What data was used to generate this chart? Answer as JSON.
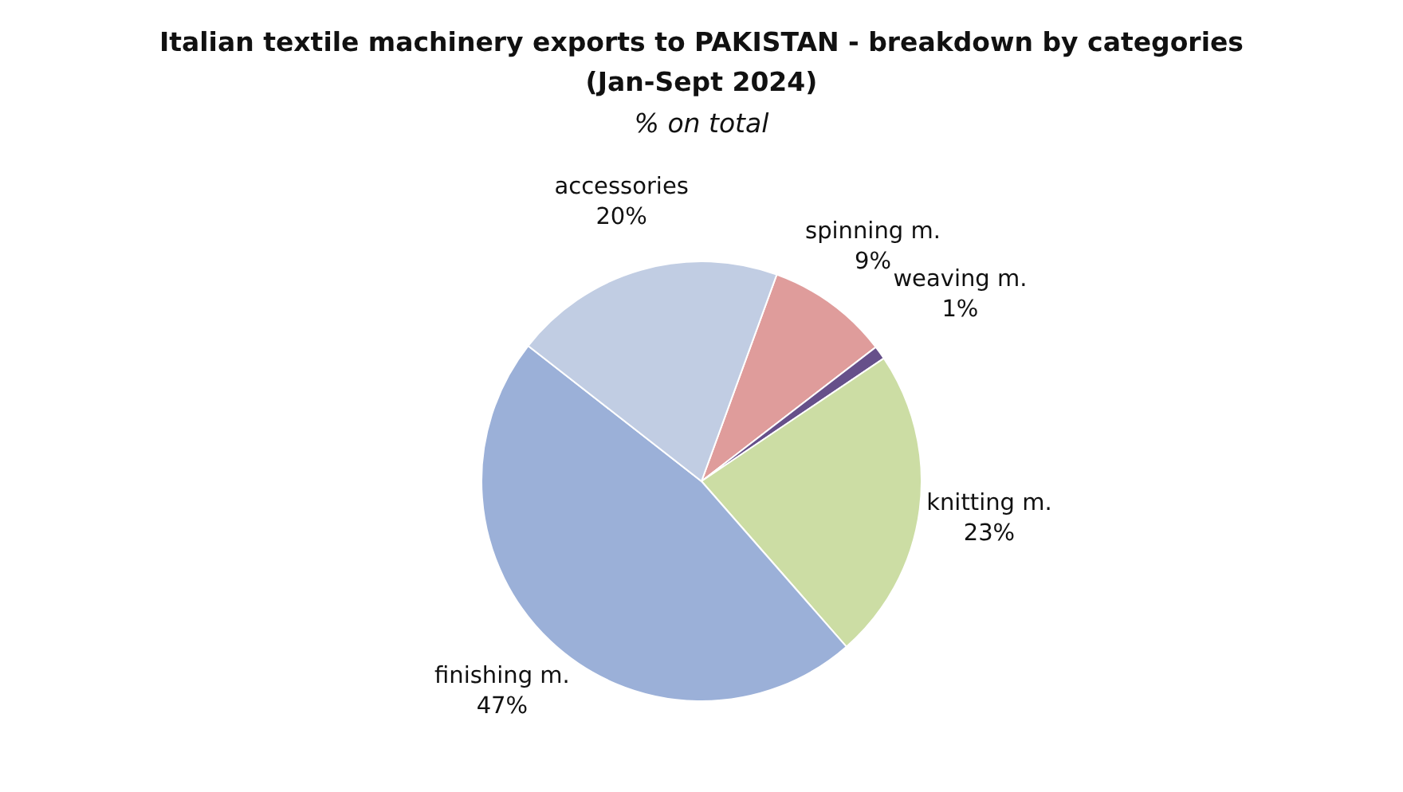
{
  "chart_data": {
    "type": "pie",
    "title": "Italian textile machinery exports to PAKISTAN - breakdown by categories\n(Jan-Sept 2024)",
    "subtitle": "% on total",
    "categories": [
      "spinning m.",
      "weaving m.",
      "knitting m.",
      "finishing m.",
      "accessories"
    ],
    "values": [
      9,
      1,
      23,
      47,
      20
    ],
    "value_labels": [
      "9%",
      "1%",
      "23%",
      "47%",
      "20%"
    ],
    "colors": [
      "#df9c9b",
      "#66508a",
      "#ccdda4",
      "#9bb0d8",
      "#c1cde3"
    ]
  }
}
